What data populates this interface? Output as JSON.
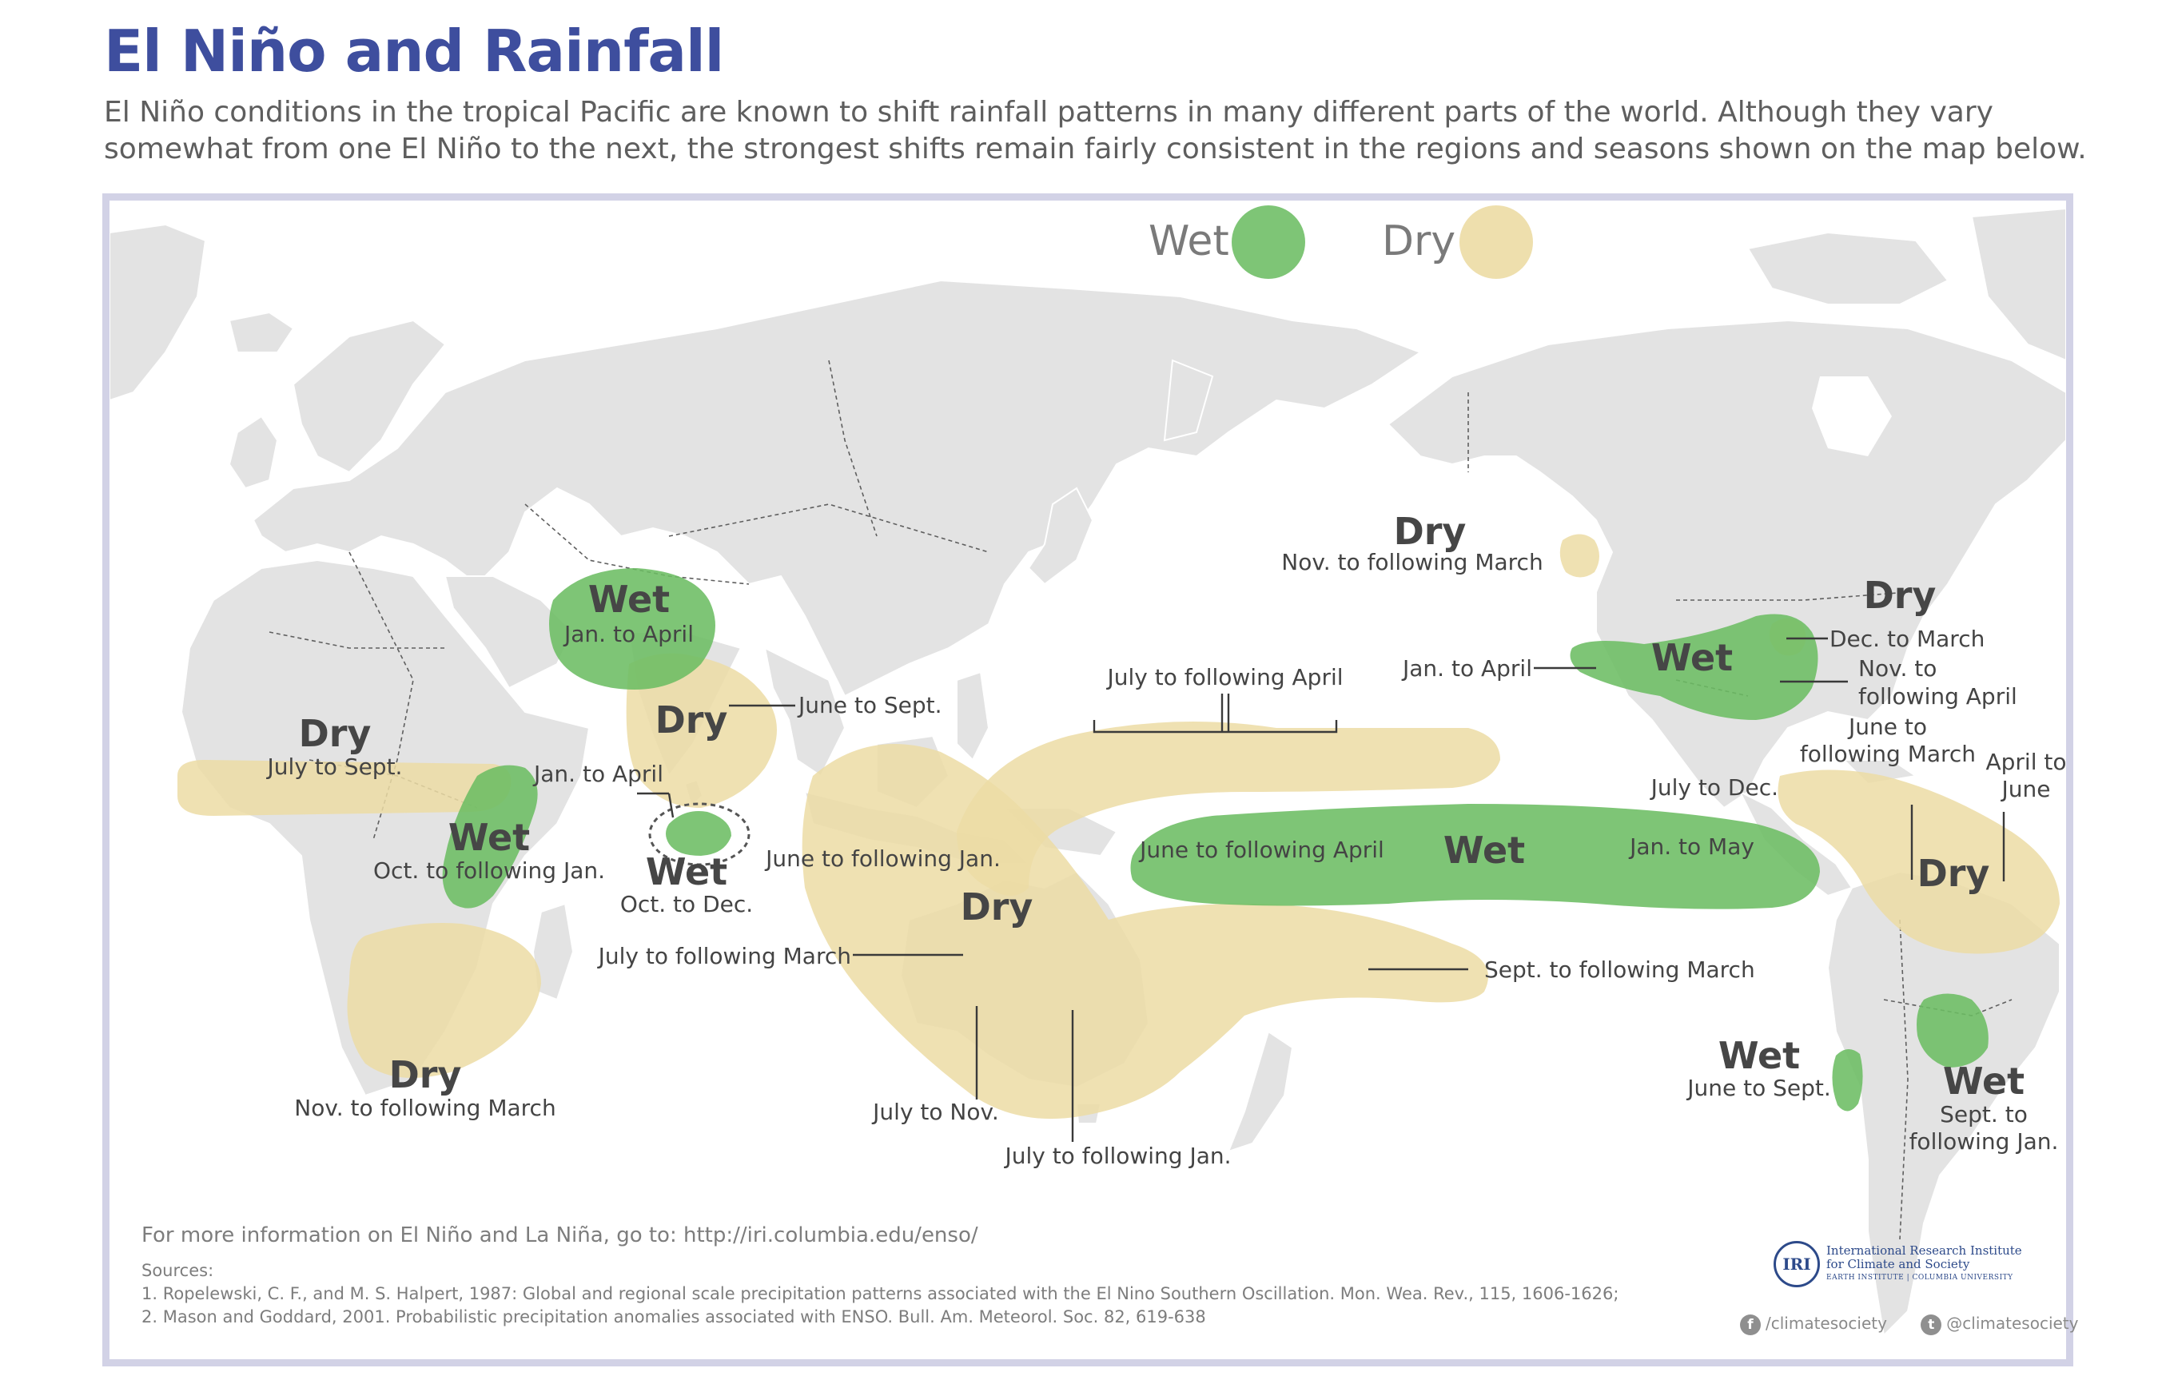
{
  "title": "El Niño and Rainfall",
  "intro": "El Niño conditions in the tropical Pacific are known to shift rainfall patterns in many different parts of the world. Although they vary somewhat from one El Niño to the next, the strongest shifts remain fairly consistent in the regions and seasons shown on the map below.",
  "legend": {
    "wet_label": "Wet",
    "dry_label": "Dry",
    "wet_color": "#6cbd63",
    "dry_color": "#ecdca4"
  },
  "regions": {
    "central_asia": {
      "type": "Wet",
      "season": "Jan. to April"
    },
    "india": {
      "type": "Dry",
      "season": "June to Sept."
    },
    "sri_lanka_jan": {
      "season": "Jan. to April"
    },
    "sri_lanka": {
      "type": "Wet",
      "season": "Oct. to Dec."
    },
    "sahel": {
      "type": "Dry",
      "season": "July to Sept."
    },
    "east_africa": {
      "type": "Wet",
      "season": "Oct. to following Jan."
    },
    "southern_africa": {
      "type": "Dry",
      "season": "Nov. to following March"
    },
    "maritime_continent": {
      "type": "Dry",
      "season_july_jan": "June to following Jan.",
      "season_july_march": "July to following March"
    },
    "north_pacific_band": {
      "season": "July to following April"
    },
    "australia_north": {
      "season": "July to Nov."
    },
    "australia_east": {
      "season": "July to following Jan."
    },
    "south_pacific": {
      "season": "Sept. to following March"
    },
    "equatorial_pacific": {
      "type": "Wet",
      "season_west": "June to following April",
      "season_east": "Jan. to May"
    },
    "pacific_northwest": {
      "type": "Dry",
      "season": "Nov. to following March"
    },
    "us_south": {
      "type": "Wet",
      "season_west": "Jan. to April",
      "season_east_1": "Nov. to",
      "season_east_2": "following April"
    },
    "us_ohio": {
      "type": "Dry",
      "season": "Dec. to March"
    },
    "caribbean": {
      "season_1": "June to",
      "season_2": "following March"
    },
    "northern_south_america": {
      "type": "Dry",
      "season_west": "July to Dec.",
      "season_east_1": "April to",
      "season_east_2": "June"
    },
    "chile": {
      "type": "Wet",
      "season": "June to Sept."
    },
    "southeast_south_america": {
      "type": "Wet",
      "season_1": "Sept. to",
      "season_2": "following Jan."
    }
  },
  "footer": {
    "more_info": "For more information on El Niño and La Niña, go to: http://iri.columbia.edu/enso/",
    "sources_label": "Sources:",
    "source_1": "1. Ropelewski, C. F., and M. S. Halpert, 1987: Global and regional scale precipitation patterns associated with the El Nino Southern Oscillation. Mon. Wea. Rev., 115, 1606-1626;",
    "source_2": "2. Mason and Goddard, 2001. Probabilistic precipitation anomalies associated with ENSO.  Bull. Am. Meteorol. Soc. 82, 619-638"
  },
  "logo": {
    "abbr": "IRI",
    "name_1": "International Research Institute",
    "name_2": "for Climate and Society",
    "name_3": "EARTH INSTITUTE | COLUMBIA UNIVERSITY",
    "icon": "iri-globe-icon"
  },
  "social": {
    "facebook": "/climatesociety",
    "twitter": "@climatesociety",
    "facebook_icon": "facebook-icon",
    "twitter_icon": "twitter-icon"
  }
}
